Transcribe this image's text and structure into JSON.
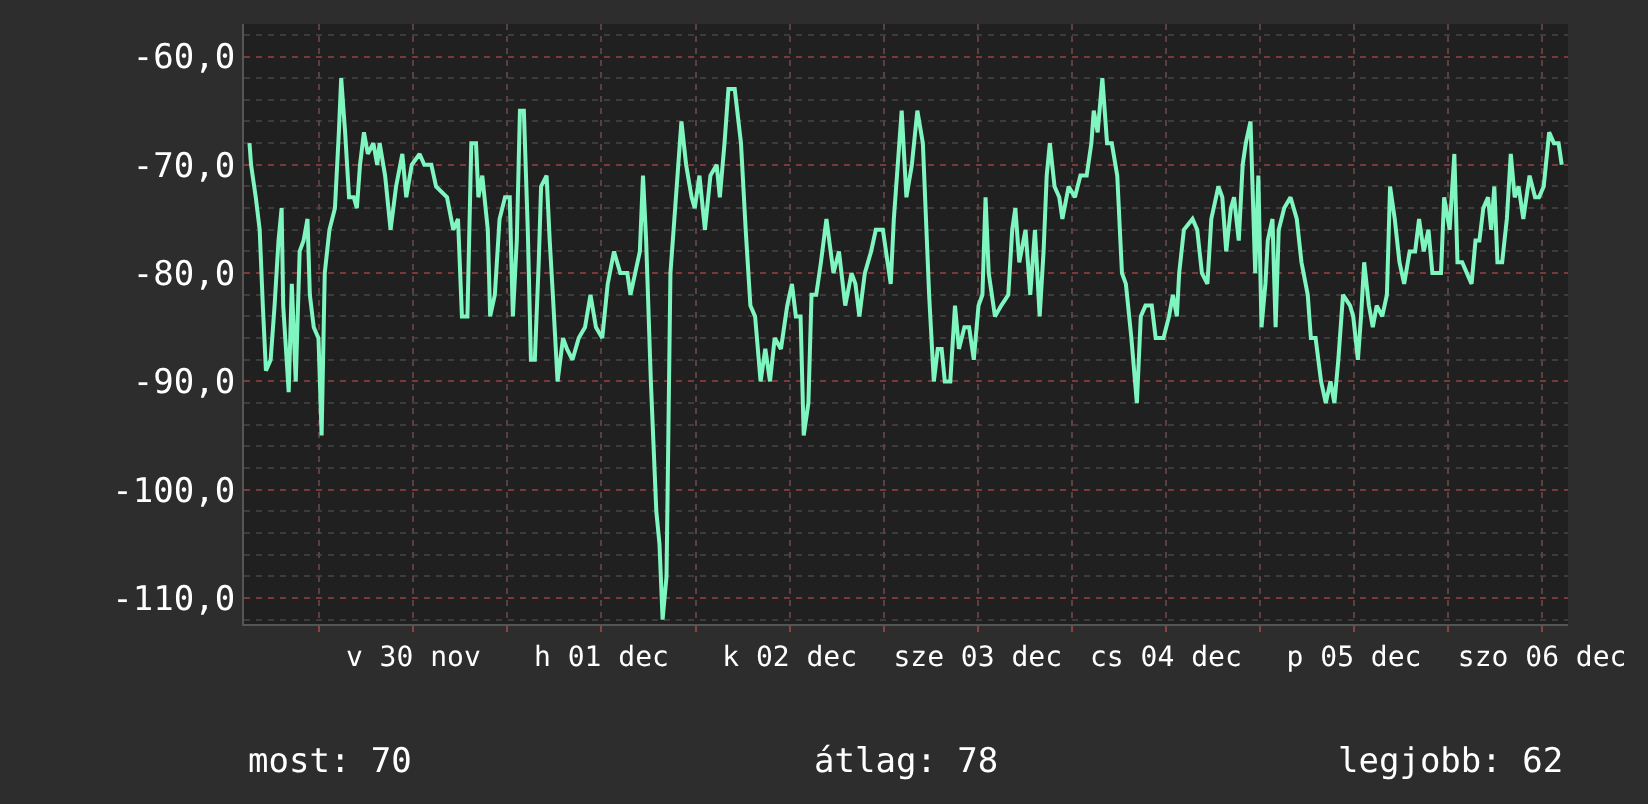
{
  "chart_data": {
    "type": "line",
    "color": "#7ff5c0",
    "x": [
      "--11-29T15:06",
      "--11-29T15:18",
      "--11-29T15:54",
      "--11-29T16:24",
      "--11-29T16:48",
      "--11-29T17:12",
      "--11-29T17:48",
      "--11-29T18:18",
      "--11-29T18:48",
      "--11-29T19:12",
      "--11-29T19:24",
      "--11-29T20:06",
      "--11-29T20:30",
      "--11-29T21:00",
      "--11-29T21:30",
      "--11-29T22:00",
      "--11-29T22:30",
      "--11-29T22:48",
      "--11-29T23:18",
      "--11-29T23:54",
      "--11-30T00:18",
      "--11-30T00:42",
      "--11-30T01:18",
      "--11-30T02:00",
      "--11-30T02:30",
      "--11-30T02:48",
      "--11-30T03:18",
      "--11-30T03:48",
      "--11-30T04:24",
      "--11-30T04:48",
      "--11-30T05:12",
      "--11-30T05:42",
      "--11-30T06:12",
      "--11-30T06:54",
      "--11-30T07:24",
      "--11-30T07:42",
      "--11-30T08:24",
      "--11-30T09:06",
      "--11-30T09:48",
      "--11-30T10:36",
      "--11-30T11:06",
      "--11-30T11:48",
      "--11-30T12:48",
      "--11-30T13:24",
      "--11-30T14:18",
      "--11-30T14:54",
      "--11-30T16:18",
      "--11-30T17:06",
      "--11-30T17:42",
      "--11-30T18:12",
      "--11-30T18:54",
      "--11-30T19:24",
      "--11-30T20:00",
      "--11-30T20:18",
      "--11-30T20:48",
      "--11-30T21:30",
      "--11-30T21:48",
      "--11-30T22:24",
      "--11-30T23:00",
      "--11-30T23:42",
      "--12-01T00:18",
      "--12-01T00:42",
      "--12-01T01:12",
      "--12-01T01:36",
      "--12-01T02:06",
      "--12-01T02:36",
      "--12-01T03:00",
      "--12-01T03:30",
      "--12-01T04:00",
      "--12-01T04:18",
      "--12-01T05:00",
      "--12-01T05:24",
      "--12-01T05:48",
      "--12-01T06:24",
      "--12-01T07:06",
      "--12-01T07:36",
      "--12-01T08:18",
      "--12-01T09:06",
      "--12-01T09:54",
      "--12-01T10:36",
      "--12-01T11:18",
      "--12-01T12:06",
      "--12-01T12:48",
      "--12-01T13:36",
      "--12-01T14:24",
      "--12-01T15:18",
      "--12-01T15:42",
      "--12-01T16:18",
      "--12-01T16:54",
      "--12-01T17:18",
      "--12-01T17:42",
      "--12-01T18:18",
      "--12-01T19:00",
      "--12-01T19:24",
      "--12-01T19:48",
      "--12-01T20:18",
      "--12-01T20:48",
      "--12-01T21:12",
      "--12-01T21:48",
      "--12-01T22:12",
      "--12-01T22:48",
      "--12-01T23:30",
      "--12-01T23:54",
      "--12-02T00:30",
      "--12-02T01:12",
      "--12-02T01:54",
      "--12-02T02:42",
      "--12-02T03:06",
      "--12-02T03:42",
      "--12-02T04:12",
      "--12-02T05:00",
      "--12-02T05:48",
      "--12-02T06:24",
      "--12-02T07:00",
      "--12-02T07:36",
      "--12-02T08:18",
      "--12-02T08:54",
      "--12-02T09:30",
      "--12-02T10:06",
      "--12-02T10:54",
      "--12-02T11:42",
      "--12-02T12:18",
      "--12-02T12:48",
      "--12-02T13:24",
      "--12-02T13:48",
      "--12-02T14:24",
      "--12-02T14:48",
      "--12-02T15:24",
      "--12-02T16:00",
      "--12-02T16:42",
      "--12-02T17:36",
      "--12-02T18:18",
      "--12-02T19:06",
      "--12-02T19:54",
      "--12-02T20:24",
      "--12-02T20:54",
      "--12-02T21:36",
      "--12-02T22:24",
      "--12-02T23:00",
      "--12-02T23:54",
      "--12-03T00:54",
      "--12-03T01:18",
      "--12-03T02:18",
      "--12-03T02:54",
      "--12-03T03:36",
      "--12-03T04:18",
      "--12-03T05:00",
      "--12-03T05:48",
      "--12-03T06:24",
      "--12-03T06:54",
      "--12-03T07:24",
      "--12-03T07:48",
      "--12-03T08:30",
      "--12-03T09:06",
      "--12-03T09:36",
      "--12-03T10:18",
      "--12-03T10:54",
      "--12-03T11:30",
      "--12-03T12:06",
      "--12-03T12:36",
      "--12-03T13:00",
      "--12-03T13:24",
      "--12-03T14:12",
      "--12-03T15:00",
      "--12-03T15:54",
      "--12-03T16:24",
      "--12-03T16:48",
      "--12-03T17:18",
      "--12-03T18:06",
      "--12-03T18:42",
      "--12-03T19:18",
      "--12-03T19:54",
      "--12-03T20:24",
      "--12-03T20:48",
      "--12-03T21:12",
      "--12-03T21:48",
      "--12-03T22:24",
      "--12-03T22:48",
      "--12-03T23:36",
      "--12-04T00:24",
      "--12-04T01:06",
      "--12-04T01:54",
      "--12-04T02:30",
      "--12-04T02:48",
      "--12-04T03:18",
      "--12-04T03:54",
      "--12-04T04:30",
      "--12-04T05:06",
      "--12-04T05:48",
      "--12-04T06:24",
      "--12-04T06:54",
      "--12-04T07:36",
      "--12-04T08:18",
      "--12-04T08:48",
      "--12-04T09:24",
      "--12-04T10:12",
      "--12-04T10:42",
      "--12-04T11:42",
      "--12-04T12:24",
      "--12-04T12:54",
      "--12-04T13:24",
      "--12-04T13:42",
      "--12-04T14:18",
      "--12-04T15:24",
      "--12-04T16:00",
      "--12-04T16:36",
      "--12-04T17:18",
      "--12-04T17:48",
      "--12-04T18:42",
      "--12-04T19:12",
      "--12-04T19:42",
      "--12-04T20:18",
      "--12-04T20:42",
      "--12-04T21:18",
      "--12-04T21:48",
      "--12-04T22:12",
      "--12-04T22:48",
      "--12-04T23:24",
      "--12-04T23:48",
      "--12-05T00:12",
      "--12-05T00:42",
      "--12-05T01:00",
      "--12-05T01:36",
      "--12-05T02:00",
      "--12-05T02:24",
      "--12-05T03:06",
      "--12-05T03:54",
      "--12-05T04:42",
      "--12-05T05:18",
      "--12-05T06:06",
      "--12-05T06:30",
      "--12-05T07:06",
      "--12-05T07:48",
      "--12-05T08:24",
      "--12-05T09:00",
      "--12-05T09:30",
      "--12-05T10:00",
      "--12-05T10:36",
      "--12-05T11:30",
      "--12-05T11:54",
      "--12-05T12:30",
      "--12-05T12:54",
      "--12-05T13:18",
      "--12-05T13:54",
      "--12-05T14:24",
      "--12-05T14:54",
      "--12-05T15:36",
      "--12-05T16:12",
      "--12-05T16:36",
      "--12-05T17:12",
      "--12-05T17:48",
      "--12-05T18:24",
      "--12-05T19:06",
      "--12-05T19:48",
      "--12-05T20:18",
      "--12-05T20:54",
      "--12-05T21:30",
      "--12-05T22:00",
      "--12-05T22:30",
      "--12-05T23:06",
      "--12-05T23:30",
      "--12-06T00:12",
      "--12-06T00:48",
      "--12-06T01:12",
      "--12-06T01:48",
      "--12-06T02:24",
      "--12-06T03:00",
      "--12-06T03:30",
      "--12-06T04:00",
      "--12-06T04:30",
      "--12-06T05:06",
      "--12-06T05:30",
      "--12-06T05:54",
      "--12-06T06:18",
      "--12-06T06:54",
      "--12-06T07:30",
      "--12-06T08:00",
      "--12-06T08:30",
      "--12-06T09:00",
      "--12-06T09:36",
      "--12-06T10:24",
      "--12-06T11:06",
      "--12-06T11:36",
      "--12-06T12:12",
      "--12-06T12:54",
      "--12-06T13:30",
      "--12-06T14:06",
      "--12-06T14:30"
    ],
    "values": [
      -68,
      -70,
      -73,
      -76,
      -83,
      -89,
      -88,
      -83,
      -77,
      -74,
      -83,
      -91,
      -81,
      -90,
      -78,
      -77,
      -75,
      -82,
      -85,
      -86,
      -95,
      -80,
      -76,
      -74,
      -67,
      -62,
      -67,
      -73,
      -73,
      -74,
      -70,
      -67,
      -69,
      -68,
      -70,
      -68,
      -71,
      -76,
      -72,
      -69,
      -73,
      -70,
      -69,
      -70,
      -70,
      -72,
      -73,
      -76,
      -75,
      -84,
      -84,
      -68,
      -68,
      -73,
      -71,
      -76,
      -84,
      -82,
      -75,
      -73,
      -73,
      -84,
      -77,
      -65,
      -65,
      -76,
      -88,
      -88,
      -79,
      -72,
      -71,
      -77,
      -82,
      -90,
      -86,
      -87,
      -88,
      -86,
      -85,
      -82,
      -85,
      -86,
      -81,
      -78,
      -80,
      -80,
      -82,
      -80,
      -78,
      -71,
      -77,
      -90,
      -102,
      -105,
      -112,
      -108,
      -80,
      -76,
      -70,
      -66,
      -70,
      -73,
      -74,
      -71,
      -76,
      -71,
      -70,
      -73,
      -68,
      -63,
      -63,
      -68,
      -76,
      -83,
      -84,
      -90,
      -87,
      -90,
      -86,
      -87,
      -83,
      -81,
      -84,
      -84,
      -95,
      -92,
      -82,
      -82,
      -79,
      -75,
      -80,
      -78,
      -83,
      -80,
      -81,
      -84,
      -80,
      -78,
      -76,
      -76,
      -81,
      -75,
      -65,
      -73,
      -70,
      -65,
      -68,
      -82,
      -90,
      -87,
      -87,
      -90,
      -90,
      -83,
      -87,
      -85,
      -85,
      -88,
      -83,
      -82,
      -73,
      -80,
      -84,
      -83,
      -82,
      -76,
      -74,
      -79,
      -76,
      -82,
      -76,
      -84,
      -78,
      -71,
      -68,
      -72,
      -73,
      -75,
      -72,
      -73,
      -71,
      -71,
      -68,
      -65,
      -67,
      -62,
      -68,
      -68,
      -71,
      -80,
      -81,
      -86,
      -92,
      -84,
      -83,
      -83,
      -86,
      -86,
      -84,
      -82,
      -84,
      -80,
      -76,
      -75,
      -76,
      -80,
      -81,
      -75,
      -72,
      -73,
      -78,
      -74,
      -73,
      -77,
      -70,
      -68,
      -66,
      -80,
      -71,
      -85,
      -81,
      -77,
      -75,
      -85,
      -76,
      -74,
      -73,
      -75,
      -79,
      -82,
      -86,
      -86,
      -90,
      -92,
      -90,
      -92,
      -88,
      -82,
      -83,
      -84,
      -88,
      -84,
      -79,
      -83,
      -85,
      -83,
      -84,
      -82,
      -72,
      -75,
      -79,
      -81,
      -78,
      -78,
      -75,
      -78,
      -76,
      -80,
      -80,
      -80,
      -73,
      -76,
      -69,
      -79,
      -79,
      -80,
      -81,
      -77,
      -77,
      -74,
      -73,
      -76,
      -72,
      -79,
      -79,
      -75,
      -69,
      -73,
      -72,
      -75,
      -71,
      -73,
      -73,
      -72,
      -67,
      -68,
      -68,
      -70
    ],
    "xlim": [
      "--11-29T14:24",
      "--12-06T15:18"
    ],
    "xticks": [
      {
        "value": "--11-30",
        "label": null
      },
      {
        "value": "--11-30T12:00",
        "label": "v 30 nov"
      },
      {
        "value": "--12-01",
        "label": null
      },
      {
        "value": "--12-01T12:00",
        "label": "h 01 dec"
      },
      {
        "value": "--12-02",
        "label": null
      },
      {
        "value": "--12-02T12:00",
        "label": "k 02 dec"
      },
      {
        "value": "--12-03",
        "label": null
      },
      {
        "value": "--12-03T12:00",
        "label": "sze 03 dec"
      },
      {
        "value": "--12-04",
        "label": null
      },
      {
        "value": "--12-04T12:00",
        "label": "cs 04 dec"
      },
      {
        "value": "--12-05",
        "label": null
      },
      {
        "value": "--12-05T12:00",
        "label": "p 05 dec"
      },
      {
        "value": "--12-06",
        "label": null
      },
      {
        "value": "--12-06T12:00",
        "label": "szo 06 dec"
      }
    ],
    "ylim": [
      -112.4,
      -57
    ],
    "yticks": [
      {
        "value": -60,
        "label": "-60,0"
      },
      {
        "value": -70,
        "label": "-70,0"
      },
      {
        "value": -80,
        "label": "-80,0"
      },
      {
        "value": -90,
        "label": "-90,0"
      },
      {
        "value": -100,
        "label": "-100,0"
      },
      {
        "value": -110,
        "label": "-110,0"
      }
    ],
    "grid": true,
    "annotations": [
      "most: 70",
      "átlag: 78",
      "legjobb: 62"
    ]
  }
}
